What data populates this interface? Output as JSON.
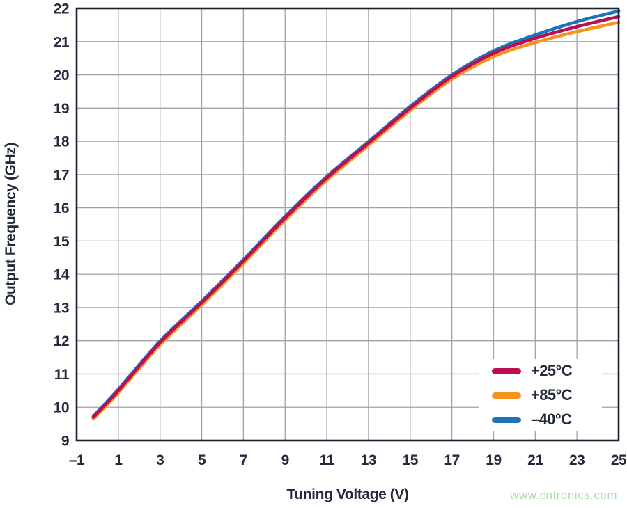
{
  "chart_data": {
    "type": "line",
    "title": "",
    "xlabel": "Tuning Voltage (V)",
    "ylabel": "Output Frequency (GHz)",
    "xlim": [
      -1,
      25
    ],
    "ylim": [
      9,
      22
    ],
    "xticks": [
      -1,
      1,
      3,
      5,
      7,
      9,
      11,
      13,
      15,
      17,
      19,
      21,
      23,
      25
    ],
    "xtick_labels": [
      "–1",
      "1",
      "3",
      "5",
      "7",
      "9",
      "11",
      "13",
      "15",
      "17",
      "19",
      "21",
      "23",
      "25"
    ],
    "yticks": [
      9,
      10,
      11,
      12,
      13,
      14,
      15,
      16,
      17,
      18,
      19,
      20,
      21,
      22
    ],
    "ytick_labels": [
      "9",
      "10",
      "11",
      "12",
      "13",
      "14",
      "15",
      "16",
      "17",
      "18",
      "19",
      "20",
      "21",
      "22"
    ],
    "grid": true,
    "grid_color": "#a2a2a5",
    "border_color": "#1b2130",
    "legend_position": "lower right",
    "x": [
      -0.2,
      1,
      3,
      5,
      7,
      9,
      11,
      13,
      15,
      17,
      19,
      21,
      23,
      25
    ],
    "series": [
      {
        "name": "+25°C",
        "color": "#c00c50",
        "values": [
          9.7,
          10.5,
          11.95,
          13.15,
          14.4,
          15.7,
          16.9,
          17.95,
          19.0,
          19.95,
          20.65,
          21.1,
          21.45,
          21.75
        ]
      },
      {
        "name": "+85°C",
        "color": "#f6921e",
        "values": [
          9.65,
          10.44,
          11.88,
          13.08,
          14.33,
          15.63,
          16.83,
          17.88,
          18.93,
          19.87,
          20.55,
          20.97,
          21.3,
          21.58
        ]
      },
      {
        "name": "–40°C",
        "color": "#1b75bc",
        "values": [
          9.73,
          10.54,
          11.99,
          13.19,
          14.44,
          15.74,
          16.94,
          17.99,
          19.05,
          20.0,
          20.72,
          21.2,
          21.6,
          21.92
        ]
      }
    ]
  },
  "watermark": {
    "text": "www.cntronics.com",
    "color": "#a9dfa9"
  }
}
